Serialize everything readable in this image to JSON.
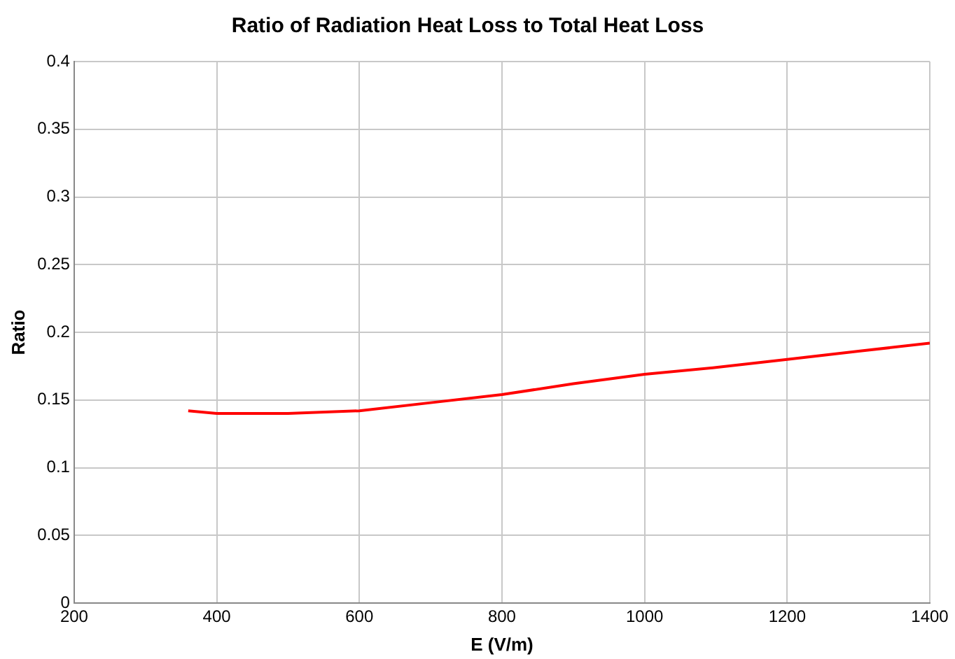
{
  "chart_data": {
    "type": "line",
    "title": "Ratio of Radiation Heat Loss to Total Heat Loss",
    "xlabel": "E (V/m)",
    "ylabel": "Ratio",
    "x": [
      360,
      400,
      500,
      600,
      700,
      800,
      900,
      1000,
      1100,
      1200,
      1300,
      1400
    ],
    "series": [
      {
        "color": "#ff0000",
        "values": [
          0.142,
          0.14,
          0.14,
          0.142,
          0.148,
          0.154,
          0.162,
          0.169,
          0.174,
          0.18,
          0.186,
          0.192
        ]
      }
    ],
    "xlim": [
      200,
      1400
    ],
    "xticks": [
      200,
      400,
      600,
      800,
      1000,
      1200,
      1400
    ],
    "ylim": [
      0,
      0.4
    ],
    "yticks": [
      0,
      0.05,
      0.1,
      0.15,
      0.2,
      0.25,
      0.3,
      0.35,
      0.4
    ],
    "grid": true,
    "legend": false,
    "marker": "none",
    "line_style": "solid"
  }
}
